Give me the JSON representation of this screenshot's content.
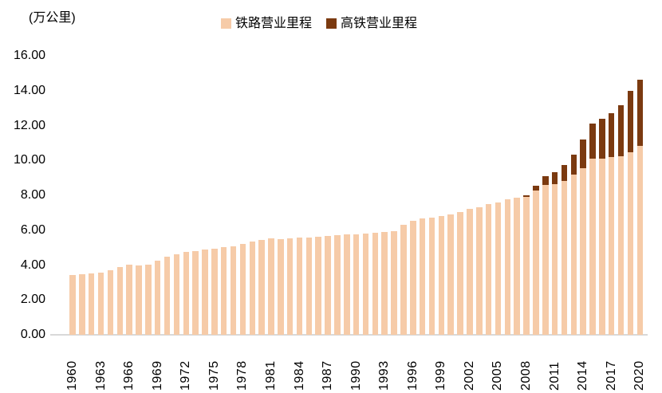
{
  "chart_data": {
    "type": "bar",
    "stacked": true,
    "title": "",
    "unit_label": "(万公里)",
    "xlabel": "",
    "ylabel": "",
    "ylim": [
      0,
      16
    ],
    "grid": false,
    "legend_position": "top-center",
    "y_ticks": [
      0,
      2,
      4,
      6,
      8,
      10,
      12,
      14,
      16
    ],
    "y_tick_labels": [
      "0.00",
      "2.00",
      "4.00",
      "6.00",
      "8.00",
      "10.00",
      "12.00",
      "14.00",
      "16.00"
    ],
    "x_tick_labels": [
      "1960",
      "1963",
      "1966",
      "1969",
      "1972",
      "1975",
      "1978",
      "1981",
      "1984",
      "1987",
      "1990",
      "1993",
      "1996",
      "1999",
      "2002",
      "2005",
      "2008",
      "2011",
      "2014",
      "2017",
      "2020"
    ],
    "categories": [
      1960,
      1961,
      1962,
      1963,
      1964,
      1965,
      1966,
      1967,
      1968,
      1969,
      1970,
      1971,
      1972,
      1973,
      1974,
      1975,
      1976,
      1977,
      1978,
      1979,
      1980,
      1981,
      1982,
      1983,
      1984,
      1985,
      1986,
      1987,
      1988,
      1989,
      1990,
      1991,
      1992,
      1993,
      1994,
      1995,
      1996,
      1997,
      1998,
      1999,
      2000,
      2001,
      2002,
      2003,
      2004,
      2005,
      2006,
      2007,
      2008,
      2009,
      2010,
      2011,
      2012,
      2013,
      2014,
      2015,
      2016,
      2017,
      2018,
      2019,
      2020
    ],
    "series": [
      {
        "name": "铁路营业里程",
        "color": "#F6CBA8",
        "values": [
          3.45,
          3.49,
          3.52,
          3.57,
          3.7,
          3.9,
          4.04,
          3.97,
          4.02,
          4.24,
          4.46,
          4.62,
          4.74,
          4.82,
          4.89,
          4.95,
          5.01,
          5.09,
          5.2,
          5.36,
          5.46,
          5.52,
          5.49,
          5.52,
          5.56,
          5.58,
          5.62,
          5.66,
          5.7,
          5.74,
          5.78,
          5.8,
          5.83,
          5.89,
          5.95,
          6.31,
          6.56,
          6.66,
          6.71,
          6.81,
          6.91,
          7.04,
          7.23,
          7.32,
          7.5,
          7.59,
          7.75,
          7.85,
          7.9,
          8.28,
          8.61,
          8.66,
          8.82,
          9.2,
          9.54,
          10.12,
          10.1,
          10.18,
          10.22,
          10.45,
          10.84
        ]
      },
      {
        "name": "高铁营业里程",
        "color": "#7B3A10",
        "values": [
          0,
          0,
          0,
          0,
          0,
          0,
          0,
          0,
          0,
          0,
          0,
          0,
          0,
          0,
          0,
          0,
          0,
          0,
          0,
          0,
          0,
          0,
          0,
          0,
          0,
          0,
          0,
          0,
          0,
          0,
          0,
          0,
          0,
          0,
          0,
          0,
          0,
          0,
          0,
          0,
          0,
          0,
          0,
          0,
          0,
          0,
          0,
          0,
          0.1,
          0.27,
          0.51,
          0.66,
          0.94,
          1.11,
          1.64,
          1.98,
          2.3,
          2.52,
          2.95,
          3.54,
          3.79
        ]
      }
    ]
  },
  "colors": {
    "background": "#FFFFFF",
    "axis_line": "#D9D9D9",
    "text": "#000000"
  }
}
